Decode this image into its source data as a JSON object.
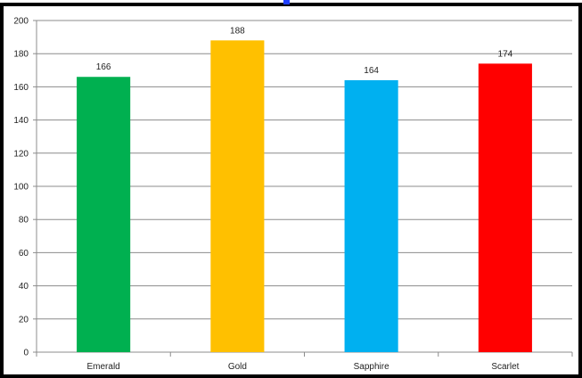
{
  "chart_data": {
    "type": "bar",
    "title": "",
    "xlabel": "",
    "ylabel": "",
    "categories": [
      "Emerald",
      "Gold",
      "Sapphire",
      "Scarlet"
    ],
    "values": [
      166,
      188,
      164,
      174
    ],
    "colors": [
      "#00b050",
      "#ffc000",
      "#00b0f0",
      "#ff0000"
    ],
    "ylim": [
      0,
      200
    ],
    "yticks": [
      0,
      20,
      40,
      60,
      80,
      100,
      120,
      140,
      160,
      180,
      200
    ],
    "grid": true,
    "legend": "none",
    "data_labels": true
  },
  "style": {
    "frame_color": "#000000",
    "title_accent_color": "#1f3fff",
    "grid_color": "#8c8c8c"
  }
}
